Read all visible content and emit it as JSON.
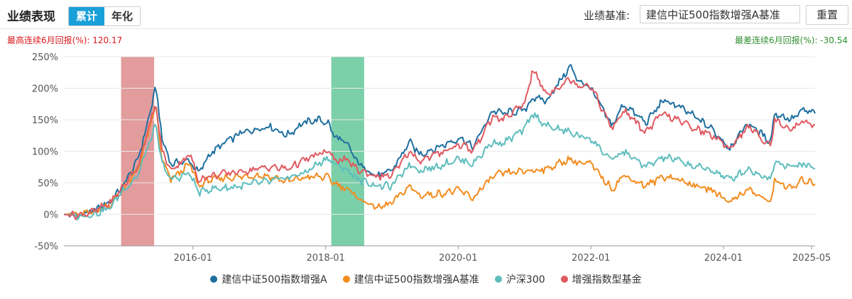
{
  "header": {
    "title": "业绩表现",
    "tabs": [
      {
        "label": "累计",
        "active": true
      },
      {
        "label": "年化",
        "active": false
      }
    ],
    "benchmark_label": "业绩基准:",
    "benchmark_value": "建信中证500指数增强A基准",
    "reset_label": "重置"
  },
  "stats": {
    "max_return": "最高连续6月回报(%):  120.17",
    "min_return": "最差连续6月回报(%):  -30.54"
  },
  "colors": {
    "max_band": "#d97b7b",
    "min_band": "#4fbf8c"
  },
  "chart_data": {
    "type": "line",
    "xlabel": "",
    "ylabel": "",
    "x_range": [
      "2014-01-20",
      "2025-05-20"
    ],
    "ylim": [
      -50,
      250
    ],
    "y_ticks": [
      -50,
      0,
      50,
      100,
      150,
      200,
      250
    ],
    "y_tick_labels": [
      "-50%",
      "0%",
      "50%",
      "100%",
      "150%",
      "200%",
      "250%"
    ],
    "x_ticks": [
      "2016-01",
      "2018-01",
      "2020-01",
      "2022-01",
      "2024-01",
      "2025-05"
    ],
    "grid": true,
    "legend_position": "bottom",
    "highlight_bands": [
      {
        "name": "max_6m",
        "start": "2014-12-01",
        "end": "2015-06-01"
      },
      {
        "name": "min_6m",
        "start": "2018-02-01",
        "end": "2018-08-01"
      }
    ],
    "series": [
      {
        "name": "建信中证500指数增强A",
        "color": "#1f6f9f",
        "points": [
          [
            "2014-01-20",
            0
          ],
          [
            "2014-04-01",
            -2
          ],
          [
            "2014-07-01",
            5
          ],
          [
            "2014-10-01",
            20
          ],
          [
            "2014-12-01",
            40
          ],
          [
            "2015-03-01",
            85
          ],
          [
            "2015-05-01",
            150
          ],
          [
            "2015-06-10",
            203
          ],
          [
            "2015-07-15",
            120
          ],
          [
            "2015-09-01",
            80
          ],
          [
            "2015-12-15",
            85
          ],
          [
            "2016-02-01",
            65
          ],
          [
            "2016-04-01",
            95
          ],
          [
            "2016-07-01",
            115
          ],
          [
            "2016-10-01",
            130
          ],
          [
            "2016-12-15",
            135
          ],
          [
            "2017-03-01",
            140
          ],
          [
            "2017-06-01",
            125
          ],
          [
            "2017-09-01",
            145
          ],
          [
            "2017-11-20",
            150
          ],
          [
            "2018-01-15",
            145
          ],
          [
            "2018-02-15",
            125
          ],
          [
            "2018-05-01",
            110
          ],
          [
            "2018-07-01",
            80
          ],
          [
            "2018-10-15",
            60
          ],
          [
            "2019-01-01",
            70
          ],
          [
            "2019-04-10",
            115
          ],
          [
            "2019-06-01",
            95
          ],
          [
            "2019-09-01",
            105
          ],
          [
            "2019-12-31",
            120
          ],
          [
            "2020-02-01",
            120
          ],
          [
            "2020-03-20",
            105
          ],
          [
            "2020-07-10",
            165
          ],
          [
            "2020-09-01",
            160
          ],
          [
            "2020-12-31",
            165
          ],
          [
            "2021-02-15",
            185
          ],
          [
            "2021-05-01",
            180
          ],
          [
            "2021-09-10",
            235
          ],
          [
            "2021-10-15",
            215
          ],
          [
            "2021-12-31",
            200
          ],
          [
            "2022-04-27",
            140
          ],
          [
            "2022-07-01",
            175
          ],
          [
            "2022-10-31",
            145
          ],
          [
            "2023-01-31",
            180
          ],
          [
            "2023-04-01",
            175
          ],
          [
            "2023-07-01",
            160
          ],
          [
            "2023-10-31",
            135
          ],
          [
            "2024-02-05",
            105
          ],
          [
            "2024-05-15",
            145
          ],
          [
            "2024-09-18",
            115
          ],
          [
            "2024-10-08",
            160
          ],
          [
            "2025-01-10",
            150
          ],
          [
            "2025-03-15",
            165
          ],
          [
            "2025-05-20",
            160
          ]
        ]
      },
      {
        "name": "建信中证500指数增强A基准",
        "color": "#f28c1f",
        "points": [
          [
            "2014-01-20",
            0
          ],
          [
            "2014-04-01",
            0
          ],
          [
            "2014-07-01",
            3
          ],
          [
            "2014-10-01",
            15
          ],
          [
            "2014-12-01",
            35
          ],
          [
            "2015-03-01",
            70
          ],
          [
            "2015-05-01",
            130
          ],
          [
            "2015-06-10",
            172
          ],
          [
            "2015-07-15",
            85
          ],
          [
            "2015-09-01",
            55
          ],
          [
            "2015-12-15",
            80
          ],
          [
            "2016-02-01",
            45
          ],
          [
            "2016-04-01",
            55
          ],
          [
            "2016-07-01",
            58
          ],
          [
            "2016-10-01",
            60
          ],
          [
            "2016-12-15",
            62
          ],
          [
            "2017-03-01",
            60
          ],
          [
            "2017-06-01",
            52
          ],
          [
            "2017-09-01",
            58
          ],
          [
            "2017-11-20",
            60
          ],
          [
            "2018-01-15",
            58
          ],
          [
            "2018-02-15",
            50
          ],
          [
            "2018-05-01",
            40
          ],
          [
            "2018-07-01",
            25
          ],
          [
            "2018-10-15",
            10
          ],
          [
            "2019-01-01",
            18
          ],
          [
            "2019-04-10",
            45
          ],
          [
            "2019-06-01",
            30
          ],
          [
            "2019-09-01",
            32
          ],
          [
            "2019-12-31",
            38
          ],
          [
            "2020-02-01",
            35
          ],
          [
            "2020-03-20",
            25
          ],
          [
            "2020-07-10",
            60
          ],
          [
            "2020-09-01",
            65
          ],
          [
            "2020-12-31",
            68
          ],
          [
            "2021-02-15",
            70
          ],
          [
            "2021-05-01",
            72
          ],
          [
            "2021-09-10",
            88
          ],
          [
            "2021-10-15",
            82
          ],
          [
            "2021-12-31",
            80
          ],
          [
            "2022-04-27",
            40
          ],
          [
            "2022-07-01",
            62
          ],
          [
            "2022-10-31",
            45
          ],
          [
            "2023-01-31",
            60
          ],
          [
            "2023-04-01",
            58
          ],
          [
            "2023-07-01",
            48
          ],
          [
            "2023-10-31",
            38
          ],
          [
            "2024-02-05",
            20
          ],
          [
            "2024-05-15",
            40
          ],
          [
            "2024-09-18",
            18
          ],
          [
            "2024-10-08",
            55
          ],
          [
            "2025-01-10",
            40
          ],
          [
            "2025-03-15",
            55
          ],
          [
            "2025-05-20",
            48
          ]
        ]
      },
      {
        "name": "沪深300",
        "color": "#5fbdbd",
        "points": [
          [
            "2014-01-20",
            0
          ],
          [
            "2014-04-01",
            -3
          ],
          [
            "2014-07-01",
            0
          ],
          [
            "2014-10-01",
            10
          ],
          [
            "2014-12-01",
            35
          ],
          [
            "2015-03-01",
            60
          ],
          [
            "2015-05-01",
            110
          ],
          [
            "2015-06-10",
            140
          ],
          [
            "2015-07-15",
            80
          ],
          [
            "2015-09-01",
            55
          ],
          [
            "2015-12-15",
            65
          ],
          [
            "2016-02-01",
            35
          ],
          [
            "2016-04-01",
            40
          ],
          [
            "2016-07-01",
            42
          ],
          [
            "2016-10-01",
            45
          ],
          [
            "2016-12-15",
            50
          ],
          [
            "2017-03-01",
            52
          ],
          [
            "2017-06-01",
            58
          ],
          [
            "2017-09-01",
            65
          ],
          [
            "2017-11-20",
            80
          ],
          [
            "2018-01-15",
            90
          ],
          [
            "2018-02-15",
            80
          ],
          [
            "2018-05-01",
            70
          ],
          [
            "2018-07-01",
            55
          ],
          [
            "2018-10-15",
            45
          ],
          [
            "2019-01-01",
            45
          ],
          [
            "2019-04-10",
            80
          ],
          [
            "2019-06-01",
            70
          ],
          [
            "2019-09-01",
            75
          ],
          [
            "2019-12-31",
            88
          ],
          [
            "2020-02-01",
            85
          ],
          [
            "2020-03-20",
            80
          ],
          [
            "2020-07-10",
            115
          ],
          [
            "2020-09-01",
            112
          ],
          [
            "2020-12-31",
            135
          ],
          [
            "2021-02-15",
            160
          ],
          [
            "2021-05-01",
            140
          ],
          [
            "2021-09-10",
            130
          ],
          [
            "2021-10-15",
            125
          ],
          [
            "2021-12-31",
            120
          ],
          [
            "2022-04-27",
            85
          ],
          [
            "2022-07-01",
            100
          ],
          [
            "2022-10-31",
            75
          ],
          [
            "2023-01-31",
            90
          ],
          [
            "2023-04-01",
            88
          ],
          [
            "2023-07-01",
            78
          ],
          [
            "2023-10-31",
            70
          ],
          [
            "2024-02-05",
            55
          ],
          [
            "2024-05-15",
            72
          ],
          [
            "2024-09-18",
            55
          ],
          [
            "2024-10-08",
            85
          ],
          [
            "2025-01-10",
            75
          ],
          [
            "2025-03-15",
            80
          ],
          [
            "2025-05-20",
            72
          ]
        ]
      },
      {
        "name": "增强指数型基金",
        "color": "#e05a61",
        "points": [
          [
            "2014-01-20",
            0
          ],
          [
            "2014-04-01",
            -2
          ],
          [
            "2014-07-01",
            4
          ],
          [
            "2014-10-01",
            18
          ],
          [
            "2014-12-01",
            40
          ],
          [
            "2015-03-01",
            75
          ],
          [
            "2015-05-01",
            135
          ],
          [
            "2015-06-10",
            175
          ],
          [
            "2015-07-15",
            100
          ],
          [
            "2015-09-01",
            70
          ],
          [
            "2015-12-15",
            95
          ],
          [
            "2016-02-01",
            55
          ],
          [
            "2016-04-01",
            60
          ],
          [
            "2016-07-01",
            65
          ],
          [
            "2016-10-01",
            68
          ],
          [
            "2016-12-15",
            72
          ],
          [
            "2017-03-01",
            75
          ],
          [
            "2017-06-01",
            72
          ],
          [
            "2017-09-01",
            85
          ],
          [
            "2017-11-20",
            95
          ],
          [
            "2018-01-15",
            100
          ],
          [
            "2018-02-15",
            88
          ],
          [
            "2018-05-01",
            85
          ],
          [
            "2018-07-01",
            70
          ],
          [
            "2018-10-15",
            60
          ],
          [
            "2019-01-01",
            62
          ],
          [
            "2019-04-10",
            100
          ],
          [
            "2019-06-01",
            85
          ],
          [
            "2019-09-01",
            95
          ],
          [
            "2019-12-31",
            110
          ],
          [
            "2020-02-01",
            110
          ],
          [
            "2020-03-20",
            100
          ],
          [
            "2020-07-10",
            155
          ],
          [
            "2020-09-01",
            150
          ],
          [
            "2020-12-31",
            175
          ],
          [
            "2021-02-15",
            230
          ],
          [
            "2021-05-01",
            190
          ],
          [
            "2021-09-10",
            215
          ],
          [
            "2021-10-15",
            205
          ],
          [
            "2021-12-31",
            205
          ],
          [
            "2022-04-27",
            135
          ],
          [
            "2022-07-01",
            165
          ],
          [
            "2022-10-31",
            130
          ],
          [
            "2023-01-31",
            160
          ],
          [
            "2023-04-01",
            152
          ],
          [
            "2023-07-01",
            140
          ],
          [
            "2023-10-31",
            125
          ],
          [
            "2024-02-05",
            105
          ],
          [
            "2024-05-15",
            140
          ],
          [
            "2024-09-18",
            108
          ],
          [
            "2024-10-08",
            150
          ],
          [
            "2025-01-10",
            135
          ],
          [
            "2025-03-15",
            148
          ],
          [
            "2025-05-20",
            142
          ]
        ]
      }
    ]
  }
}
